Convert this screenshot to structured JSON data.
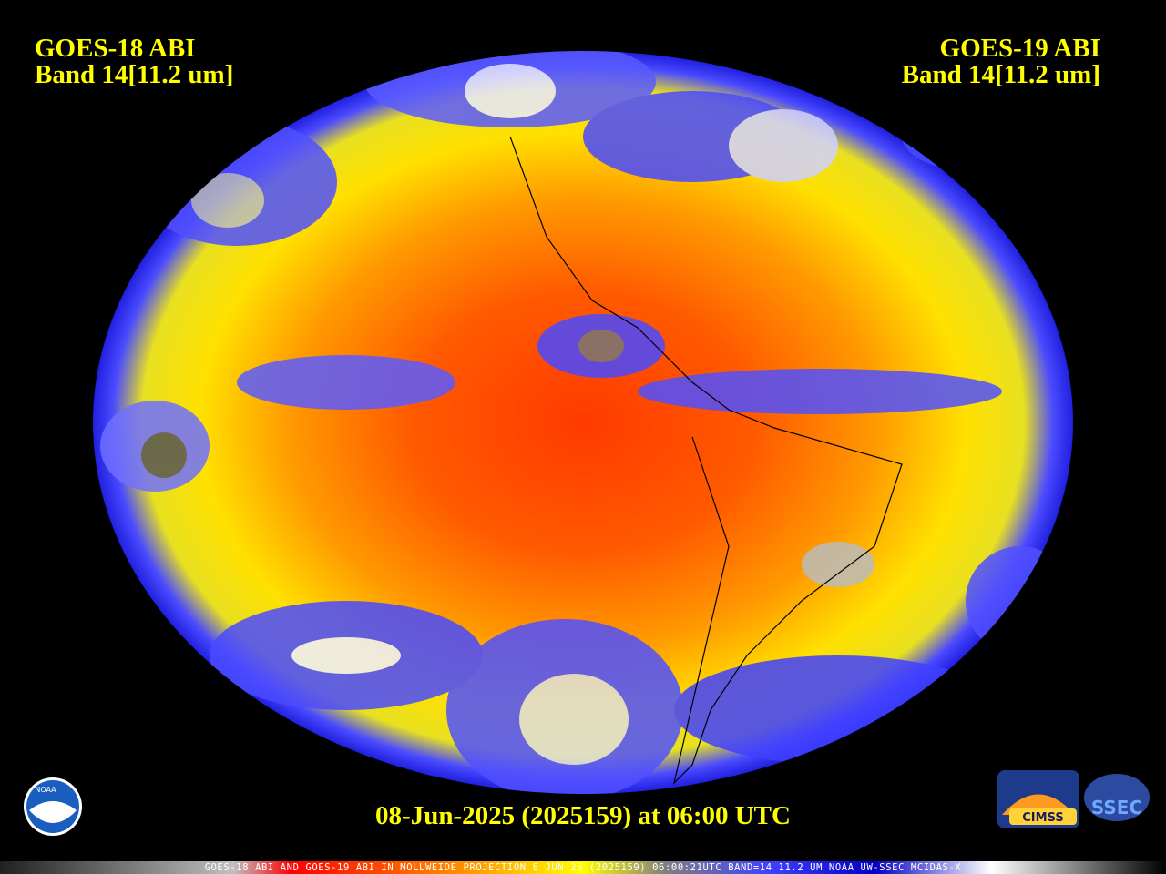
{
  "header": {
    "left": {
      "satellite": "GOES-18 ABI",
      "band": "Band 14[11.2 um]"
    },
    "right": {
      "satellite": "GOES-19 ABI",
      "band": "Band 14[11.2 um]"
    }
  },
  "timestamp": "08-Jun-2025 (2025159) at 06:00 UTC",
  "footer": "GOES-18 ABI AND GOES-19 ABI IN MOLLWEIDE PROJECTION 8 JUN 25 (2025159) 06:00:21UTC BAND=14 11.2 UM NOAA UW-SSEC MCIDAS-X",
  "logos": {
    "noaa": "NOAA",
    "cimss": "CIMSS",
    "ssec": "SSEC"
  }
}
